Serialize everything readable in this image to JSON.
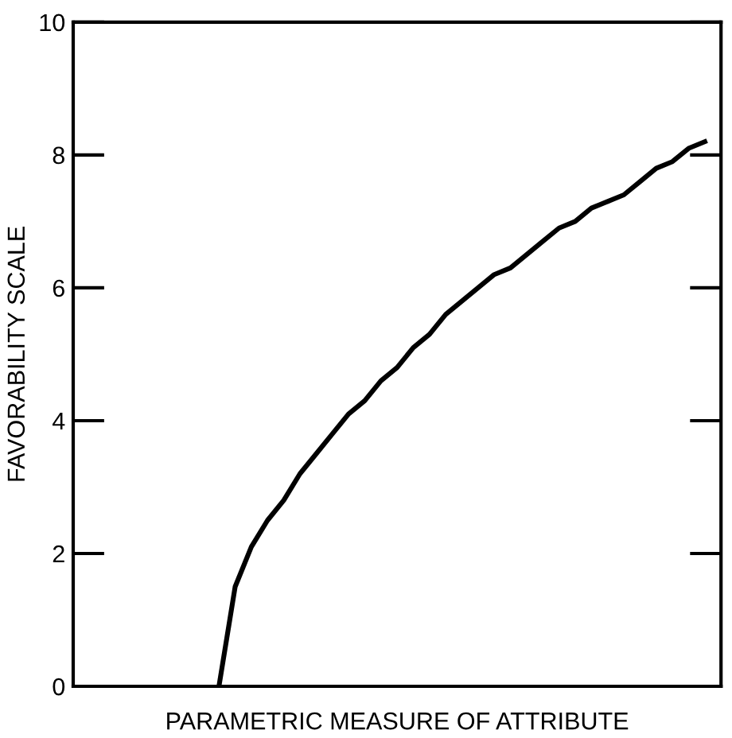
{
  "chart_data": {
    "type": "line",
    "xlabel": "PARAMETRIC MEASURE OF ATTRIBUTE",
    "ylabel": "FAVORABILITY SCALE",
    "categories": [
      null,
      null,
      null,
      null,
      null,
      null,
      null,
      null,
      null,
      null,
      null,
      null,
      null,
      null,
      null,
      null,
      null,
      null,
      null,
      null,
      null,
      null,
      null,
      null,
      null,
      null,
      null,
      null,
      null,
      null,
      null,
      null,
      null,
      null,
      null,
      null,
      null,
      null,
      null,
      null
    ],
    "series": [
      {
        "color": "#000000",
        "values": [
          null,
          null,
          null,
          null,
          null,
          null,
          null,
          null,
          null,
          0,
          1.5,
          2.1,
          2.5,
          2.8,
          3.2,
          3.5,
          3.8,
          4.1,
          4.3,
          4.6,
          4.8,
          5.1,
          5.3,
          5.6,
          5.8,
          6.0,
          6.2,
          6.3,
          6.5,
          6.7,
          6.9,
          7.0,
          7.2,
          7.3,
          7.4,
          7.6,
          7.8,
          7.9,
          8.1,
          8.2
        ]
      }
    ],
    "ylim": [
      0,
      10
    ],
    "yticks": [
      0,
      2,
      4,
      6,
      8,
      10
    ],
    "grid": false,
    "legend": false,
    "marker": "none",
    "line_style": "solid"
  }
}
